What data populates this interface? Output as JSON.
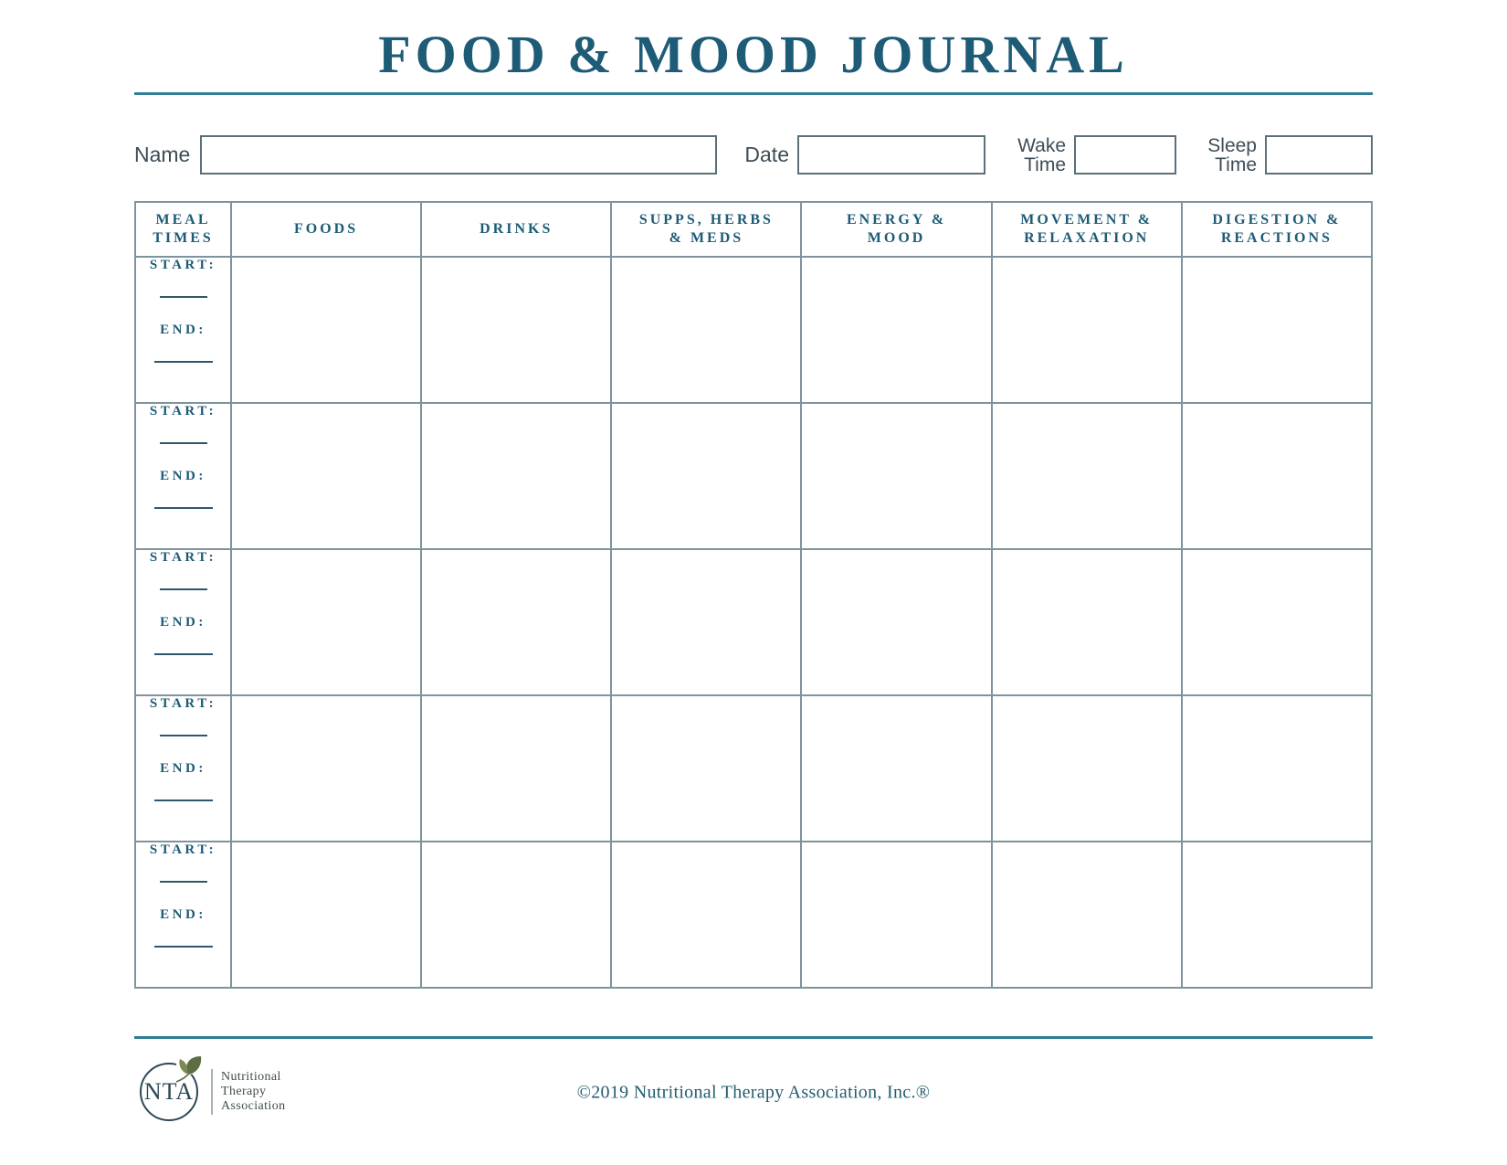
{
  "page": {
    "title": "FOOD & MOOD JOURNAL"
  },
  "fields": {
    "name": {
      "label": "Name",
      "value": ""
    },
    "date": {
      "label": "Date",
      "value": ""
    },
    "wake_time": {
      "label": "Wake Time",
      "value": ""
    },
    "sleep_time": {
      "label": "Sleep Time",
      "value": ""
    }
  },
  "table": {
    "columns": [
      {
        "lines": [
          "MEAL",
          "TIMES"
        ]
      },
      {
        "lines": [
          "FOODS"
        ]
      },
      {
        "lines": [
          "DRINKS"
        ]
      },
      {
        "lines": [
          "SUPPS, HERBS",
          "& MEDS"
        ]
      },
      {
        "lines": [
          "ENERGY &",
          "MOOD"
        ]
      },
      {
        "lines": [
          "MOVEMENT &",
          "RELAXATION"
        ]
      },
      {
        "lines": [
          "DIGESTION &",
          "REACTIONS"
        ]
      }
    ],
    "row_count": 5,
    "row_labels": {
      "start": "START:",
      "end": "END:"
    }
  },
  "footer": {
    "logo_acronym": "NTA",
    "logo_name_lines": [
      "Nutritional",
      "Therapy",
      "Association"
    ],
    "copyright": "©2019 Nutritional Therapy Association, Inc.®"
  },
  "colors": {
    "accent": "#1d5b76",
    "rule": "#2e7e94",
    "table_border": "#7f939c",
    "box_border": "#5c7079",
    "label": "#3d4d56",
    "logo_navy": "#2d4856",
    "logo_text": "#414e49",
    "leaf": "#5d6e43",
    "leaf_light": "#7a8a51",
    "copyright": "#235d70",
    "divider": "#a9b2ad",
    "write_line": "#30566a"
  }
}
